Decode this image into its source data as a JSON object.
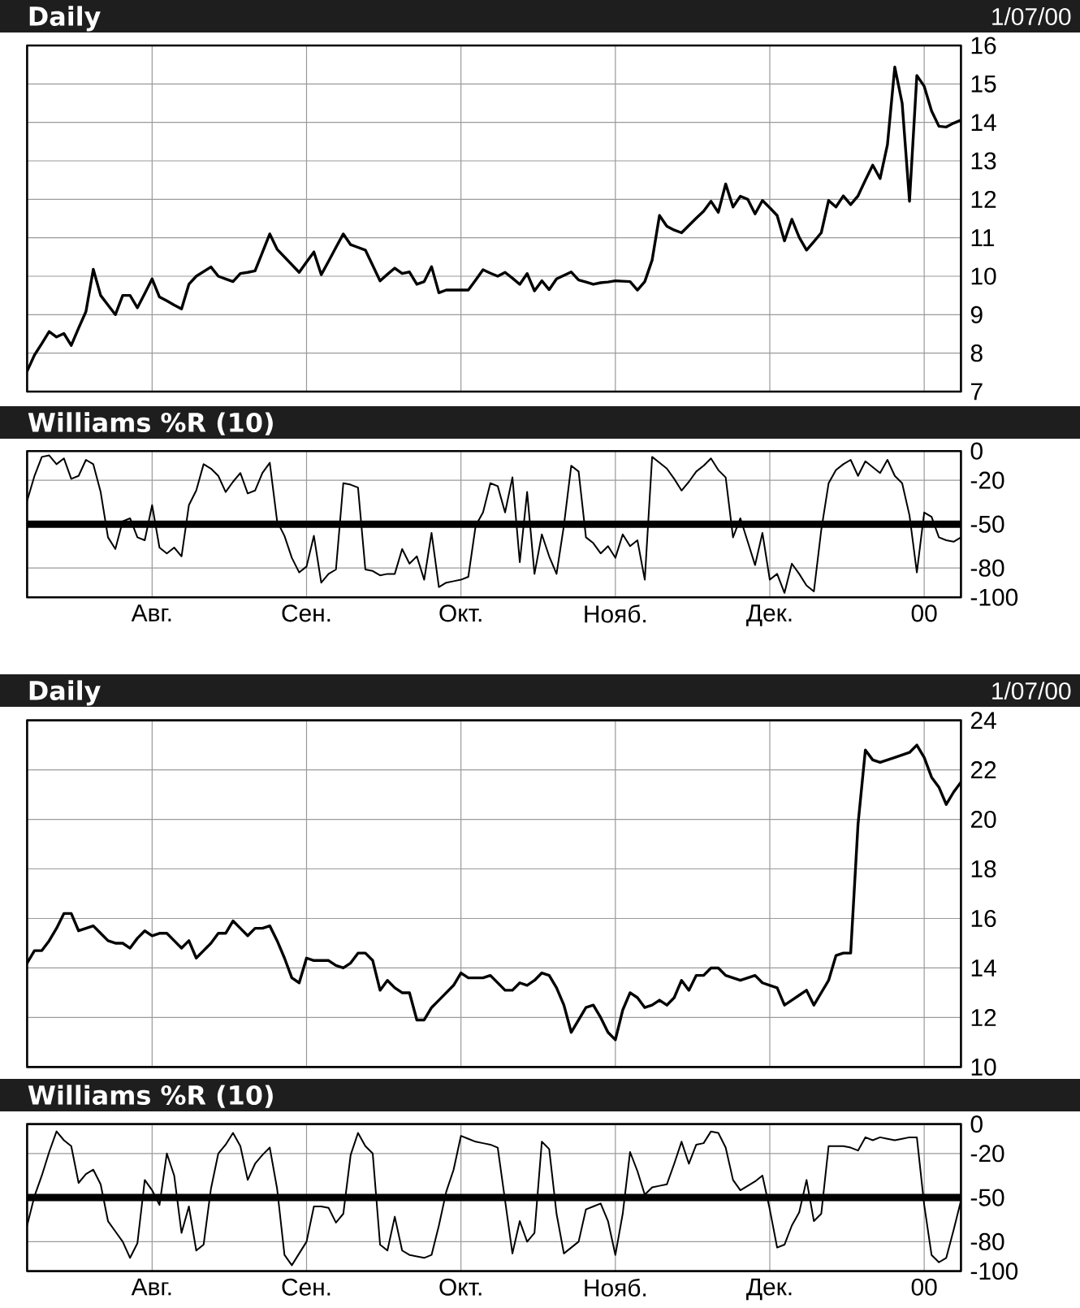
{
  "chart_data": [
    {
      "type": "line",
      "title": "Daily",
      "subtitle": "1/07/00",
      "color": "#000000",
      "categories": [
        null,
        null,
        null,
        null,
        null,
        null,
        null,
        null,
        null,
        null,
        null,
        null,
        null,
        null,
        null,
        null,
        null,
        null,
        null,
        null,
        null,
        null,
        null,
        null,
        null,
        null,
        null,
        null,
        null,
        null,
        null,
        null,
        null,
        null,
        null,
        null,
        null,
        null,
        null,
        null,
        null,
        null,
        null,
        null,
        null,
        null,
        null,
        null,
        null,
        null,
        null,
        null,
        null,
        null,
        null,
        null,
        null,
        null,
        null,
        null,
        null,
        null,
        null,
        null,
        null,
        null,
        null,
        null,
        null,
        null,
        null,
        null,
        null,
        null,
        null,
        null,
        null,
        null,
        null,
        null,
        null,
        null,
        null,
        null,
        null,
        null,
        null,
        null,
        null,
        null,
        null,
        null,
        null,
        null,
        null,
        null,
        null,
        null,
        null,
        null,
        null,
        null,
        null,
        null,
        null,
        null,
        null,
        null,
        null,
        null,
        null,
        null,
        null,
        null,
        null,
        null,
        null,
        null,
        null,
        null,
        null,
        null,
        null,
        null,
        null,
        null,
        null,
        null
      ],
      "values": [
        7.53,
        7.95,
        8.25,
        8.56,
        8.42,
        8.51,
        8.2,
        8.65,
        9.08,
        10.18,
        9.5,
        9.25,
        9.0,
        9.5,
        9.5,
        9.18,
        9.55,
        9.93,
        9.46,
        9.36,
        9.25,
        9.15,
        9.79,
        10.0,
        10.12,
        10.24,
        10.0,
        9.93,
        9.86,
        10.07,
        10.1,
        10.14,
        10.62,
        11.1,
        10.7,
        10.5,
        10.3,
        10.1,
        10.37,
        10.63,
        10.04,
        10.39,
        10.75,
        11.1,
        10.82,
        10.75,
        10.68,
        10.28,
        9.88,
        10.05,
        10.21,
        10.07,
        10.11,
        9.79,
        9.86,
        10.25,
        9.57,
        9.64,
        9.64,
        9.64,
        9.64,
        9.9,
        10.17,
        10.08,
        10.0,
        10.1,
        9.95,
        9.79,
        10.07,
        9.62,
        9.88,
        9.65,
        9.93,
        10.02,
        10.11,
        9.9,
        9.85,
        9.79,
        9.83,
        9.85,
        9.88,
        9.87,
        9.86,
        9.64,
        9.86,
        10.42,
        11.58,
        11.3,
        11.2,
        11.13,
        11.32,
        11.51,
        11.69,
        11.95,
        11.66,
        12.4,
        11.8,
        12.08,
        12.0,
        11.62,
        11.97,
        11.78,
        11.58,
        10.92,
        11.48,
        11.01,
        10.68,
        10.9,
        11.13,
        11.97,
        11.8,
        12.09,
        11.86,
        12.09,
        12.5,
        12.89,
        12.54,
        13.42,
        15.44,
        14.5,
        11.95,
        15.22,
        14.94,
        14.3,
        13.9,
        13.88,
        13.98,
        14.06
      ],
      "ylim": [
        7,
        16
      ],
      "yticks": [
        7,
        8,
        9,
        10,
        11,
        12,
        13,
        14,
        15,
        16
      ],
      "grid": true,
      "tick_labels": "y"
    },
    {
      "type": "line",
      "title": "Williams %R (10)",
      "color": "#000000",
      "categories": [
        null,
        null,
        null,
        null,
        null,
        null,
        null,
        null,
        null,
        null,
        null,
        null,
        null,
        null,
        null,
        null,
        null,
        "Авг.",
        null,
        null,
        null,
        null,
        null,
        null,
        null,
        null,
        null,
        null,
        null,
        null,
        null,
        null,
        null,
        null,
        null,
        null,
        null,
        null,
        "Сен.",
        null,
        null,
        null,
        null,
        null,
        null,
        null,
        null,
        null,
        null,
        null,
        null,
        null,
        null,
        null,
        null,
        null,
        null,
        null,
        null,
        "Окт.",
        null,
        null,
        null,
        null,
        null,
        null,
        null,
        null,
        null,
        null,
        null,
        null,
        null,
        null,
        null,
        null,
        null,
        null,
        null,
        null,
        "Нояб.",
        null,
        null,
        null,
        null,
        null,
        null,
        null,
        null,
        null,
        null,
        null,
        null,
        null,
        null,
        null,
        null,
        null,
        null,
        null,
        null,
        "Дек.",
        null,
        null,
        null,
        null,
        null,
        null,
        null,
        null,
        null,
        null,
        null,
        null,
        null,
        null,
        null,
        null,
        null,
        null,
        null,
        null,
        "00",
        null,
        null,
        null,
        null,
        null
      ],
      "values": [
        -34,
        -17,
        -4,
        -3,
        -9,
        -5,
        -19,
        -17,
        -6,
        -9,
        -28,
        -59,
        -67,
        -48,
        -46,
        -59,
        -61,
        -37,
        -66,
        -70,
        -66,
        -72,
        -37,
        -27,
        -9,
        -12,
        -17,
        -28,
        -21,
        -15,
        -29,
        -27,
        -15,
        -8,
        -48,
        -58,
        -73,
        -83,
        -79,
        -58,
        -90,
        -84,
        -81,
        -22,
        -23,
        -25,
        -81,
        -82,
        -85,
        -84,
        -84,
        -67,
        -77,
        -72,
        -88,
        -56,
        -93,
        -90,
        -89,
        -88,
        -86,
        -51,
        -42,
        -22,
        -24,
        -42,
        -18,
        -76,
        -28,
        -84,
        -57,
        -72,
        -84,
        -51,
        -10,
        -14,
        -59,
        -63,
        -70,
        -65,
        -73,
        -57,
        -65,
        -61,
        -88,
        -4,
        -8,
        -12,
        -19,
        -27,
        -21,
        -14,
        -10,
        -5,
        -13,
        -18,
        -59,
        -46,
        -62,
        -78,
        -56,
        -88,
        -84,
        -97,
        -77,
        -84,
        -92,
        -96,
        -54,
        -22,
        -13,
        -9,
        -6,
        -17,
        -7,
        -11,
        -15,
        -6,
        -17,
        -22,
        -44,
        -83,
        -42,
        -45,
        -59,
        -61,
        -62,
        -59
      ],
      "ylim": [
        -100,
        0
      ],
      "yticks": [
        -100,
        -80,
        -50,
        -20,
        0
      ],
      "grid": true,
      "ref_lines": [
        {
          "axis": "y",
          "value": -50,
          "color": "#000000"
        }
      ]
    },
    {
      "type": "line",
      "title": "Daily",
      "subtitle": "1/07/00",
      "color": "#000000",
      "categories": [
        null,
        null,
        null,
        null,
        null,
        null,
        null,
        null,
        null,
        null,
        null,
        null,
        null,
        null,
        null,
        null,
        null,
        null,
        null,
        null,
        null,
        null,
        null,
        null,
        null,
        null,
        null,
        null,
        null,
        null,
        null,
        null,
        null,
        null,
        null,
        null,
        null,
        null,
        null,
        null,
        null,
        null,
        null,
        null,
        null,
        null,
        null,
        null,
        null,
        null,
        null,
        null,
        null,
        null,
        null,
        null,
        null,
        null,
        null,
        null,
        null,
        null,
        null,
        null,
        null,
        null,
        null,
        null,
        null,
        null,
        null,
        null,
        null,
        null,
        null,
        null,
        null,
        null,
        null,
        null,
        null,
        null,
        null,
        null,
        null,
        null,
        null,
        null,
        null,
        null,
        null,
        null,
        null,
        null,
        null,
        null,
        null,
        null,
        null,
        null,
        null,
        null,
        null,
        null,
        null,
        null,
        null,
        null,
        null,
        null,
        null,
        null,
        null,
        null,
        null,
        null,
        null,
        null,
        null,
        null,
        null,
        null,
        null,
        null,
        null,
        null,
        null,
        null
      ],
      "values": [
        14.2,
        14.7,
        14.7,
        15.1,
        15.6,
        16.2,
        16.2,
        15.5,
        15.6,
        15.7,
        15.4,
        15.1,
        15.0,
        15.0,
        14.8,
        15.2,
        15.5,
        15.3,
        15.4,
        15.4,
        15.1,
        14.8,
        15.1,
        14.4,
        14.7,
        15.0,
        15.4,
        15.4,
        15.9,
        15.6,
        15.3,
        15.6,
        15.6,
        15.7,
        15.1,
        14.4,
        13.6,
        13.4,
        14.4,
        14.3,
        14.3,
        14.3,
        14.1,
        14.0,
        14.2,
        14.6,
        14.6,
        14.3,
        13.1,
        13.5,
        13.2,
        13.0,
        13.0,
        11.9,
        11.9,
        12.4,
        12.7,
        13.0,
        13.3,
        13.8,
        13.6,
        13.6,
        13.6,
        13.7,
        13.4,
        13.1,
        13.1,
        13.4,
        13.3,
        13.5,
        13.8,
        13.7,
        13.2,
        12.5,
        11.4,
        11.9,
        12.4,
        12.5,
        12.0,
        11.4,
        11.1,
        12.3,
        13.0,
        12.8,
        12.4,
        12.5,
        12.7,
        12.5,
        12.8,
        13.5,
        13.1,
        13.7,
        13.7,
        14.0,
        14.0,
        13.7,
        13.6,
        13.5,
        13.6,
        13.7,
        13.4,
        13.3,
        13.2,
        12.5,
        12.7,
        12.9,
        13.1,
        12.5,
        13.0,
        13.5,
        14.5,
        14.6,
        14.6,
        19.8,
        22.8,
        22.4,
        22.3,
        22.4,
        22.5,
        22.6,
        22.7,
        23.0,
        22.5,
        21.7,
        21.3,
        20.6,
        21.1,
        21.5
      ],
      "ylim": [
        10,
        24
      ],
      "yticks": [
        10,
        12,
        14,
        16,
        18,
        20,
        22,
        24
      ],
      "grid": true,
      "tick_labels": "y"
    },
    {
      "type": "line",
      "title": "Williams %R (10)",
      "color": "#000000",
      "categories": [
        null,
        null,
        null,
        null,
        null,
        null,
        null,
        null,
        null,
        null,
        null,
        null,
        null,
        null,
        null,
        null,
        null,
        "Авг.",
        null,
        null,
        null,
        null,
        null,
        null,
        null,
        null,
        null,
        null,
        null,
        null,
        null,
        null,
        null,
        null,
        null,
        null,
        null,
        null,
        "Сен.",
        null,
        null,
        null,
        null,
        null,
        null,
        null,
        null,
        null,
        null,
        null,
        null,
        null,
        null,
        null,
        null,
        null,
        null,
        null,
        null,
        "Окт.",
        null,
        null,
        null,
        null,
        null,
        null,
        null,
        null,
        null,
        null,
        null,
        null,
        null,
        null,
        null,
        null,
        null,
        null,
        null,
        null,
        "Нояб.",
        null,
        null,
        null,
        null,
        null,
        null,
        null,
        null,
        null,
        null,
        null,
        null,
        null,
        null,
        null,
        null,
        null,
        null,
        null,
        null,
        "Дек.",
        null,
        null,
        null,
        null,
        null,
        null,
        null,
        null,
        null,
        null,
        null,
        null,
        null,
        null,
        null,
        null,
        null,
        null,
        null,
        null,
        "00",
        null,
        null,
        null,
        null,
        null
      ],
      "values": [
        -69,
        -49,
        -35,
        -19,
        -5,
        -11,
        -15,
        -40,
        -34,
        -31,
        -41,
        -66,
        -73,
        -80,
        -91,
        -81,
        -38,
        -45,
        -55,
        -20,
        -35,
        -74,
        -56,
        -86,
        -82,
        -44,
        -20,
        -14,
        -6,
        -15,
        -38,
        -27,
        -21,
        -16,
        -44,
        -89,
        -96,
        -88,
        -80,
        -56,
        -56,
        -57,
        -67,
        -61,
        -21,
        -6,
        -15,
        -20,
        -82,
        -86,
        -63,
        -86,
        -89,
        -90,
        -91,
        -89,
        -69,
        -46,
        -31,
        -8,
        -10,
        -12,
        -13,
        -14,
        -16,
        -52,
        -88,
        -66,
        -80,
        -74,
        -12,
        -17,
        -61,
        -88,
        -84,
        -80,
        -58,
        -56,
        -54,
        -66,
        -89,
        -61,
        -19,
        -32,
        -48,
        -43,
        -42,
        -41,
        -27,
        -12,
        -27,
        -14,
        -13,
        -5,
        -6,
        -16,
        -38,
        -45,
        -42,
        -39,
        -35,
        -58,
        -84,
        -82,
        -69,
        -60,
        -38,
        -66,
        -61,
        -15,
        -15,
        -15,
        -16,
        -18,
        -9,
        -11,
        -9,
        -10,
        -11,
        -10,
        -9,
        -9,
        -55,
        -89,
        -94,
        -91,
        -72,
        -52
      ],
      "ylim": [
        -100,
        0
      ],
      "yticks": [
        -100,
        -80,
        -50,
        -20,
        0
      ],
      "grid": true,
      "ref_lines": [
        {
          "axis": "y",
          "value": -50,
          "color": "#000000"
        }
      ]
    }
  ]
}
